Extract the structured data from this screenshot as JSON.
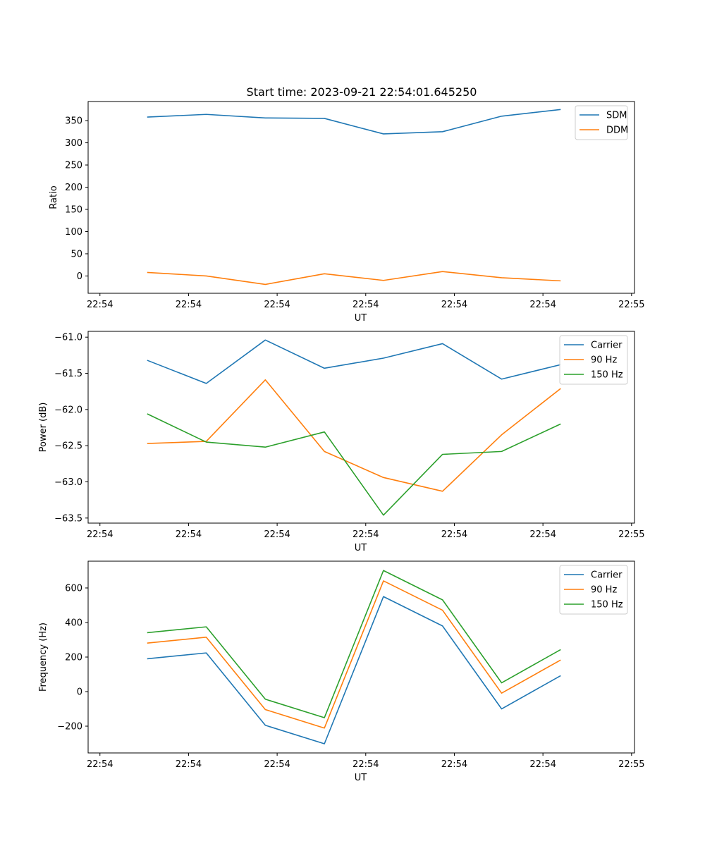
{
  "figure_title": "Start time: 2023-09-21 22:54:01.645250",
  "colors": {
    "blue": "#1f77b4",
    "orange": "#ff7f0e",
    "green": "#2ca02c"
  },
  "chart_data": [
    {
      "type": "line",
      "title": "Start time: 2023-09-21 22:54:01.645250",
      "xlabel": "UT",
      "ylabel": "Ratio",
      "x": [
        1,
        2,
        3,
        4,
        5,
        6,
        7,
        8
      ],
      "xlim": [
        0,
        9.25
      ],
      "x_ticks": [
        0.2,
        1.7,
        3.2,
        4.7,
        6.2,
        7.7,
        9.2
      ],
      "x_tick_labels": [
        "22:54",
        "22:54",
        "22:54",
        "22:54",
        "22:54",
        "22:54",
        "22:55"
      ],
      "ylim": [
        -39,
        393
      ],
      "y_ticks": [
        0,
        50,
        100,
        150,
        200,
        250,
        300,
        350
      ],
      "y_tick_labels": [
        "0",
        "50",
        "100",
        "150",
        "200",
        "250",
        "300",
        "350"
      ],
      "legend": "top-right",
      "series": [
        {
          "name": "SDM",
          "color": "#1f77b4",
          "values": [
            358,
            364,
            356,
            355,
            320,
            325,
            360,
            375
          ]
        },
        {
          "name": "DDM",
          "color": "#ff7f0e",
          "values": [
            8,
            0,
            -19,
            5,
            -10,
            10,
            -4,
            -11
          ]
        }
      ]
    },
    {
      "type": "line",
      "title": "",
      "xlabel": "UT",
      "ylabel": "Power (dB)",
      "x": [
        1,
        2,
        3,
        4,
        5,
        6,
        7,
        8
      ],
      "xlim": [
        0,
        9.25
      ],
      "x_ticks": [
        0.2,
        1.7,
        3.2,
        4.7,
        6.2,
        7.7,
        9.2
      ],
      "x_tick_labels": [
        "22:54",
        "22:54",
        "22:54",
        "22:54",
        "22:54",
        "22:54",
        "22:55"
      ],
      "ylim": [
        -63.57,
        -60.92
      ],
      "y_ticks": [
        -63.5,
        -63.0,
        -62.5,
        -62.0,
        -61.5,
        -61.0
      ],
      "y_tick_labels": [
        "−63.5",
        "−63.0",
        "−62.5",
        "−62.0",
        "−61.5",
        "−61.0"
      ],
      "legend": "top-right",
      "series": [
        {
          "name": "Carrier",
          "color": "#1f77b4",
          "values": [
            -61.32,
            -61.64,
            -61.04,
            -61.43,
            -61.29,
            -61.09,
            -61.58,
            -61.38
          ]
        },
        {
          "name": "90 Hz",
          "color": "#ff7f0e",
          "values": [
            -62.47,
            -62.44,
            -61.59,
            -62.58,
            -62.94,
            -63.13,
            -62.35,
            -61.71
          ]
        },
        {
          "name": "150 Hz",
          "color": "#2ca02c",
          "values": [
            -62.06,
            -62.45,
            -62.52,
            -62.31,
            -63.46,
            -62.62,
            -62.58,
            -62.2
          ]
        }
      ]
    },
    {
      "type": "line",
      "title": "",
      "xlabel": "UT",
      "ylabel": "Frequency (Hz)",
      "x": [
        1,
        2,
        3,
        4,
        5,
        6,
        7,
        8
      ],
      "xlim": [
        0,
        9.25
      ],
      "x_ticks": [
        0.2,
        1.7,
        3.2,
        4.7,
        6.2,
        7.7,
        9.2
      ],
      "x_tick_labels": [
        "22:54",
        "22:54",
        "22:54",
        "22:54",
        "22:54",
        "22:54",
        "22:55"
      ],
      "ylim": [
        -355,
        755
      ],
      "y_ticks": [
        -200,
        0,
        200,
        400,
        600
      ],
      "y_tick_labels": [
        "−200",
        "0",
        "200",
        "400",
        "600"
      ],
      "legend": "top-right",
      "series": [
        {
          "name": "Carrier",
          "color": "#1f77b4",
          "values": [
            190,
            224,
            -195,
            -302,
            550,
            380,
            -100,
            92
          ]
        },
        {
          "name": "90 Hz",
          "color": "#ff7f0e",
          "values": [
            281,
            315,
            -104,
            -211,
            641,
            471,
            -9,
            183
          ]
        },
        {
          "name": "150 Hz",
          "color": "#2ca02c",
          "values": [
            341,
            375,
            -44,
            -151,
            701,
            531,
            51,
            243
          ]
        }
      ]
    }
  ]
}
